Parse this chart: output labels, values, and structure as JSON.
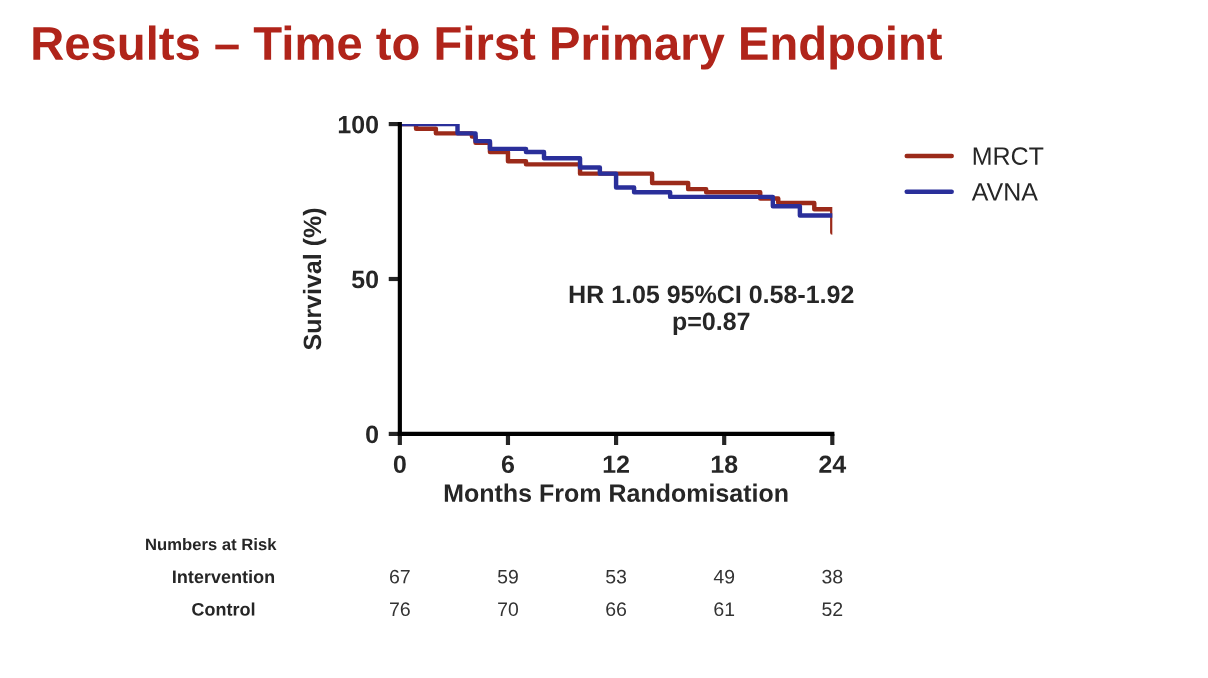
{
  "chart_data": {
    "type": "step",
    "title": "Results – Time to First Primary Endpoint",
    "xlabel": "Months From Randomisation",
    "ylabel": "Survival (%)",
    "series": [
      {
        "name": "MRCT",
        "color": "#9b2a1a",
        "x": [
          0,
          0.9,
          2,
          4,
          4.2,
          5,
          6,
          7,
          10,
          11.9,
          14,
          16,
          17,
          20,
          21,
          23,
          24
        ],
        "values": [
          100,
          98.5,
          97,
          96,
          94,
          91,
          88,
          87,
          84,
          84,
          81,
          79,
          78,
          76,
          74.5,
          72.5,
          65
        ]
      },
      {
        "name": "AVNA",
        "color": "#2a2f9a",
        "x": [
          0,
          3.2,
          4.2,
          5,
          7,
          8,
          10,
          11.1,
          12,
          13,
          15,
          20.7,
          22.2,
          24
        ],
        "values": [
          100,
          97,
          94.5,
          92,
          91,
          89,
          86,
          84,
          79.5,
          78,
          76.5,
          73.5,
          70.5,
          70.5
        ]
      }
    ],
    "xlim": [
      0,
      24
    ],
    "ylim": [
      0,
      100
    ],
    "xticks": [
      0,
      6,
      12,
      18,
      24
    ],
    "yticks": [
      0,
      50,
      100
    ],
    "grid": false,
    "legend": "top right",
    "line_style": "solid",
    "annotations": [
      "HR 1.05 95%CI 0.58-1.92\np=0.87",
      "Numbers at Risk",
      "Intervention",
      "67",
      "59",
      "53",
      "49",
      "38",
      "Control",
      "76",
      "70",
      "66",
      "61",
      "52"
    ]
  }
}
